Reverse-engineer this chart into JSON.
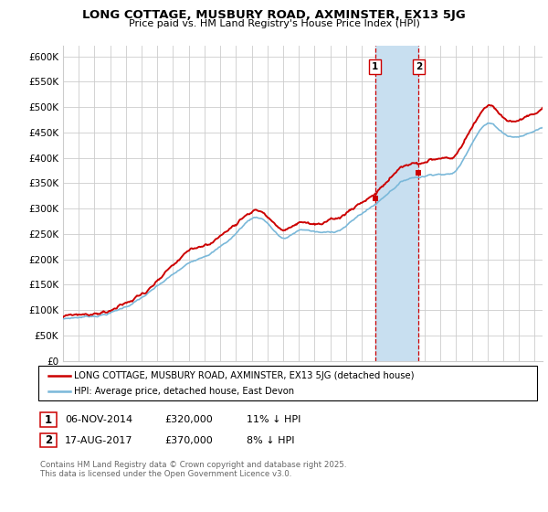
{
  "title": "LONG COTTAGE, MUSBURY ROAD, AXMINSTER, EX13 5JG",
  "subtitle": "Price paid vs. HM Land Registry's House Price Index (HPI)",
  "ylabel_ticks": [
    "£0",
    "£50K",
    "£100K",
    "£150K",
    "£200K",
    "£250K",
    "£300K",
    "£350K",
    "£400K",
    "£450K",
    "£500K",
    "£550K",
    "£600K"
  ],
  "ytick_values": [
    0,
    50000,
    100000,
    150000,
    200000,
    250000,
    300000,
    350000,
    400000,
    450000,
    500000,
    550000,
    600000
  ],
  "ylim": [
    0,
    620000
  ],
  "xlim_start": 1995.0,
  "xlim_end": 2025.5,
  "legend_line1": "LONG COTTAGE, MUSBURY ROAD, AXMINSTER, EX13 5JG (detached house)",
  "legend_line2": "HPI: Average price, detached house, East Devon",
  "sale1_date": "06-NOV-2014",
  "sale1_price": "£320,000",
  "sale1_hpi": "11% ↓ HPI",
  "sale1_x": 2014.85,
  "sale1_y": 320000,
  "sale2_date": "17-AUG-2017",
  "sale2_price": "£370,000",
  "sale2_hpi": "8% ↓ HPI",
  "sale2_x": 2017.62,
  "sale2_y": 370000,
  "footer": "Contains HM Land Registry data © Crown copyright and database right 2025.\nThis data is licensed under the Open Government Licence v3.0.",
  "hpi_color": "#7ab8d9",
  "price_color": "#cc0000",
  "shade_color": "#c8dff0",
  "vline_color": "#cc0000",
  "background_color": "#ffffff",
  "grid_color": "#cccccc",
  "hpi_anchors_x": [
    1995,
    1996,
    1998,
    2000,
    2002,
    2004,
    2006,
    2007,
    2008,
    2009,
    2010,
    2011,
    2012,
    2013,
    2014,
    2015,
    2016,
    2017,
    2018,
    2019,
    2020,
    2021,
    2022,
    2023,
    2024,
    2025.5
  ],
  "hpi_anchors_y": [
    83000,
    87000,
    98000,
    128000,
    170000,
    210000,
    255000,
    285000,
    278000,
    248000,
    262000,
    260000,
    258000,
    272000,
    296000,
    318000,
    348000,
    368000,
    375000,
    382000,
    388000,
    445000,
    485000,
    468000,
    462000,
    480000
  ]
}
